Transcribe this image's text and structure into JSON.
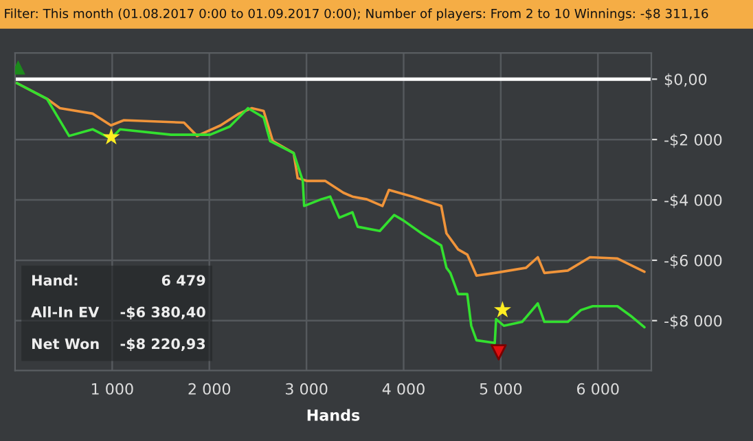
{
  "chart_data": {
    "type": "line",
    "title": "Filter: This month (01.08.2017 0:00 to 01.09.2017 0:00); Number of players: From 2 to 10 Winnings: -$8 311,16",
    "xlabel": "Hands",
    "annotations": [
      "Hand:",
      "6 479",
      "All-In EV",
      "-$6 380,40",
      "Net Won",
      "-$8 220,93"
    ],
    "xlim": [
      0,
      6550
    ],
    "ylim": [
      -9650,
      870
    ],
    "xticks": [
      {
        "value": 1000,
        "label": "1 000"
      },
      {
        "value": 2000,
        "label": "2 000"
      },
      {
        "value": 3000,
        "label": "3 000"
      },
      {
        "value": 4000,
        "label": "4 000"
      },
      {
        "value": 5000,
        "label": "5 000"
      },
      {
        "value": 6000,
        "label": "6 000"
      }
    ],
    "yticks": [
      {
        "value": 0,
        "label": "$0,00"
      },
      {
        "value": -2000,
        "label": "-$2 000"
      },
      {
        "value": -4000,
        "label": "-$4 000"
      },
      {
        "value": -6000,
        "label": "-$6 000"
      },
      {
        "value": -8000,
        "label": "-$8 000"
      }
    ],
    "grid": true,
    "line_style": "solid",
    "ref_lines": [
      {
        "axis": "y",
        "value": 0,
        "color": "#ffffff"
      }
    ],
    "series": [
      {
        "color": "#f0943a",
        "marker": "none",
        "x": [
          19,
          328,
          462,
          798,
          987,
          1121,
          1739,
          1874,
          2116,
          2304,
          2438,
          2559,
          2653,
          2868,
          2909,
          3003,
          3192,
          3379,
          3473,
          3621,
          3782,
          3849,
          4091,
          4387,
          4441,
          4561,
          4655,
          4750,
          4938,
          5260,
          5381,
          5449,
          5690,
          5918,
          6201,
          6479
        ],
        "values": [
          -130,
          -650,
          -960,
          -1140,
          -1530,
          -1360,
          -1440,
          -1880,
          -1530,
          -1140,
          -960,
          -1050,
          -2050,
          -2450,
          -3280,
          -3370,
          -3370,
          -3760,
          -3890,
          -3980,
          -4200,
          -3670,
          -3890,
          -4200,
          -5110,
          -5640,
          -5810,
          -6510,
          -6420,
          -6250,
          -5900,
          -6420,
          -6340,
          -5900,
          -5940,
          -6380
        ]
      },
      {
        "color": "#33e02f",
        "marker": "none",
        "x": [
          19,
          328,
          556,
          798,
          987,
          1081,
          1605,
          2008,
          2210,
          2398,
          2559,
          2626,
          2868,
          2962,
          2976,
          3151,
          3244,
          3338,
          3473,
          3527,
          3755,
          3903,
          3997,
          4185,
          4387,
          4441,
          4481,
          4561,
          4655,
          4696,
          4750,
          4938,
          4952,
          5032,
          5220,
          5381,
          5449,
          5690,
          5825,
          5946,
          6201,
          6349,
          6479
        ],
        "values": [
          -130,
          -650,
          -1880,
          -1660,
          -1970,
          -1660,
          -1840,
          -1840,
          -1570,
          -960,
          -1270,
          -2050,
          -2450,
          -3370,
          -4200,
          -3980,
          -3890,
          -4590,
          -4410,
          -4890,
          -5030,
          -4500,
          -4680,
          -5110,
          -5510,
          -6250,
          -6420,
          -7120,
          -7120,
          -8170,
          -8650,
          -8740,
          -7950,
          -8170,
          -8040,
          -7430,
          -8040,
          -8040,
          -7650,
          -7520,
          -7520,
          -7870,
          -8220
        ]
      },
      {
        "type": "scatter",
        "color": "#ffee22",
        "marker": "star",
        "x": [
          990,
          5018
        ],
        "values": [
          -1920,
          -7650
        ]
      },
      {
        "type": "scatter",
        "color": "#e01010",
        "marker": "triangle_down",
        "x": [
          4978
        ],
        "values": [
          -9050
        ]
      },
      {
        "type": "scatter",
        "color": "#1c8a1c",
        "marker": "triangle",
        "x": [
          32
        ],
        "values": [
          390
        ]
      }
    ]
  }
}
